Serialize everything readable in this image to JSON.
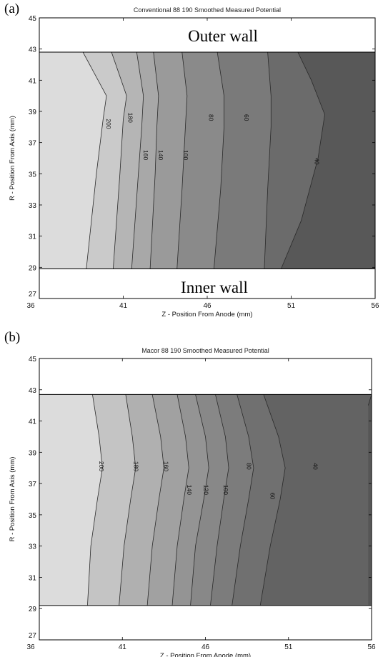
{
  "chart_data": [
    {
      "type": "contour",
      "panel_label": "(a)",
      "title": "Conventional 88 190 Smoothed Measured Potential",
      "xlabel": "Z - Position From Anode (mm)",
      "ylabel": "R - Position From Axis (mm)",
      "xlim": [
        36,
        56
      ],
      "ylim": [
        27,
        45
      ],
      "xticks": [
        "36",
        "41",
        "46",
        "51",
        "56"
      ],
      "yticks": [
        "27",
        "29",
        "31",
        "33",
        "35",
        "37",
        "39",
        "41",
        "43",
        "45"
      ],
      "filled_region_r": [
        28.9,
        42.8
      ],
      "annotations": [
        "Outer wall",
        "Inner wall"
      ],
      "levels": [
        {
          "value": 200,
          "label": "200",
          "shade": "#cacaca",
          "boundary": [
            [
              38.8,
              28.9
            ],
            [
              39.4,
              35.0
            ],
            [
              39.8,
              38.5
            ],
            [
              40.0,
              40.0
            ],
            [
              38.6,
              42.8
            ]
          ]
        },
        {
          "value": 180,
          "label": "180",
          "shade": "#b5b5b5",
          "boundary": [
            [
              40.4,
              28.9
            ],
            [
              40.8,
              35.0
            ],
            [
              41.0,
              38.5
            ],
            [
              41.2,
              40.0
            ],
            [
              40.3,
              42.8
            ]
          ]
        },
        {
          "value": 160,
          "label": "160",
          "shade": "#a8a8a8",
          "boundary": [
            [
              41.5,
              28.9
            ],
            [
              41.9,
              35.0
            ],
            [
              42.1,
              38.0
            ],
            [
              42.2,
              40.0
            ],
            [
              41.8,
              42.8
            ]
          ]
        },
        {
          "value": 140,
          "label": "140",
          "shade": "#9a9a9a",
          "boundary": [
            [
              42.6,
              28.9
            ],
            [
              42.9,
              35.0
            ],
            [
              43.0,
              38.0
            ],
            [
              43.1,
              40.0
            ],
            [
              42.8,
              42.8
            ]
          ]
        },
        {
          "value": 100,
          "label": "100",
          "shade": "#8a8a8a",
          "boundary": [
            [
              44.2,
              28.9
            ],
            [
              44.5,
              34.0
            ],
            [
              44.7,
              38.0
            ],
            [
              44.8,
              40.0
            ],
            [
              44.5,
              42.8
            ]
          ]
        },
        {
          "value": 80,
          "label": "80",
          "shade": "#7a7a7a",
          "boundary": [
            [
              46.4,
              28.9
            ],
            [
              46.8,
              34.0
            ],
            [
              47.0,
              38.0
            ],
            [
              47.0,
              40.0
            ],
            [
              46.6,
              42.8
            ]
          ]
        },
        {
          "value": 60,
          "label": "60",
          "shade": "#6b6b6b",
          "boundary": [
            [
              49.4,
              28.9
            ],
            [
              49.6,
              34.0
            ],
            [
              49.8,
              38.0
            ],
            [
              49.8,
              40.0
            ],
            [
              49.6,
              42.8
            ]
          ]
        },
        {
          "value": 40,
          "label": "40",
          "shade": "#585858",
          "boundary": [
            [
              50.4,
              28.9
            ],
            [
              51.6,
              32.0
            ],
            [
              52.6,
              36.0
            ],
            [
              53.0,
              38.8
            ],
            [
              52.2,
              41.0
            ],
            [
              51.4,
              42.8
            ]
          ]
        }
      ],
      "labels": [
        {
          "text": "200",
          "x": 40.1,
          "y": 38.2
        },
        {
          "text": "180",
          "x": 41.4,
          "y": 38.6
        },
        {
          "text": "160",
          "x": 42.3,
          "y": 36.2
        },
        {
          "text": "140",
          "x": 43.2,
          "y": 36.2
        },
        {
          "text": "100",
          "x": 44.7,
          "y": 36.2
        },
        {
          "text": "80",
          "x": 46.2,
          "y": 38.6
        },
        {
          "text": "60",
          "x": 48.3,
          "y": 38.6
        },
        {
          "text": "40",
          "x": 52.5,
          "y": 35.8
        }
      ]
    },
    {
      "type": "contour",
      "panel_label": "(b)",
      "title": "Macor 88 190 Smoothed Measured Potential",
      "xlabel": "Z - Position From Anode (mm)",
      "ylabel": "R - Position From Axis (mm)",
      "xlim": [
        36,
        56
      ],
      "ylim": [
        27,
        45
      ],
      "xticks": [
        "36",
        "41",
        "46",
        "51",
        "56"
      ],
      "yticks": [
        "27",
        "29",
        "31",
        "33",
        "35",
        "37",
        "39",
        "41",
        "43",
        "45"
      ],
      "filled_region_r": [
        29.2,
        42.7
      ],
      "annotations": [],
      "levels": [
        {
          "value": 200,
          "label": "200",
          "shade": "#c4c4c4",
          "boundary": [
            [
              38.9,
              29.2
            ],
            [
              39.1,
              33.0
            ],
            [
              39.5,
              36.0
            ],
            [
              39.8,
              38.0
            ],
            [
              39.6,
              40.0
            ],
            [
              39.2,
              42.7
            ]
          ]
        },
        {
          "value": 180,
          "label": "180",
          "shade": "#b0b0b0",
          "boundary": [
            [
              40.8,
              29.2
            ],
            [
              41.1,
              33.0
            ],
            [
              41.5,
              36.0
            ],
            [
              41.8,
              38.0
            ],
            [
              41.6,
              40.0
            ],
            [
              41.2,
              42.7
            ]
          ]
        },
        {
          "value": 160,
          "label": "160",
          "shade": "#a1a1a1",
          "boundary": [
            [
              42.5,
              29.2
            ],
            [
              42.8,
              33.0
            ],
            [
              43.2,
              36.0
            ],
            [
              43.5,
              38.0
            ],
            [
              43.3,
              40.0
            ],
            [
              42.8,
              42.7
            ]
          ]
        },
        {
          "value": 140,
          "label": "140",
          "shade": "#949494",
          "boundary": [
            [
              44.0,
              29.2
            ],
            [
              44.3,
              33.0
            ],
            [
              44.7,
              36.0
            ],
            [
              45.0,
              38.0
            ],
            [
              44.8,
              40.0
            ],
            [
              44.3,
              42.7
            ]
          ]
        },
        {
          "value": 120,
          "label": "120",
          "shade": "#888888",
          "boundary": [
            [
              45.1,
              29.2
            ],
            [
              45.4,
              33.0
            ],
            [
              45.9,
              36.0
            ],
            [
              46.2,
              38.0
            ],
            [
              46.0,
              40.0
            ],
            [
              45.4,
              42.7
            ]
          ]
        },
        {
          "value": 100,
          "label": "100",
          "shade": "#7c7c7c",
          "boundary": [
            [
              46.3,
              29.2
            ],
            [
              46.7,
              33.0
            ],
            [
              47.1,
              36.0
            ],
            [
              47.4,
              38.0
            ],
            [
              47.2,
              40.0
            ],
            [
              46.6,
              42.7
            ]
          ]
        },
        {
          "value": 80,
          "label": "80",
          "shade": "#707070",
          "boundary": [
            [
              47.6,
              29.2
            ],
            [
              48.1,
              33.0
            ],
            [
              48.6,
              36.0
            ],
            [
              48.9,
              38.0
            ],
            [
              48.6,
              40.0
            ],
            [
              47.9,
              42.7
            ]
          ]
        },
        {
          "value": 60,
          "label": "60",
          "shade": "#636363",
          "boundary": [
            [
              49.3,
              29.2
            ],
            [
              49.9,
              33.0
            ],
            [
              50.5,
              36.0
            ],
            [
              50.8,
              38.0
            ],
            [
              50.4,
              40.0
            ],
            [
              49.5,
              42.7
            ]
          ]
        },
        {
          "value": 40,
          "label": "40",
          "shade": "#565656",
          "boundary": [
            [
              55.8,
              42.0
            ],
            [
              56.0,
              42.7
            ]
          ]
        }
      ],
      "labels": [
        {
          "text": "200",
          "x": 39.7,
          "y": 38.1
        },
        {
          "text": "180",
          "x": 41.8,
          "y": 38.1
        },
        {
          "text": "160",
          "x": 43.6,
          "y": 38.1
        },
        {
          "text": "140",
          "x": 45.0,
          "y": 36.6
        },
        {
          "text": "120",
          "x": 46.0,
          "y": 36.6
        },
        {
          "text": "100",
          "x": 47.2,
          "y": 36.6
        },
        {
          "text": "80",
          "x": 48.6,
          "y": 38.1
        },
        {
          "text": "60",
          "x": 50.0,
          "y": 36.2
        },
        {
          "text": "40",
          "x": 52.6,
          "y": 38.1
        }
      ]
    }
  ]
}
